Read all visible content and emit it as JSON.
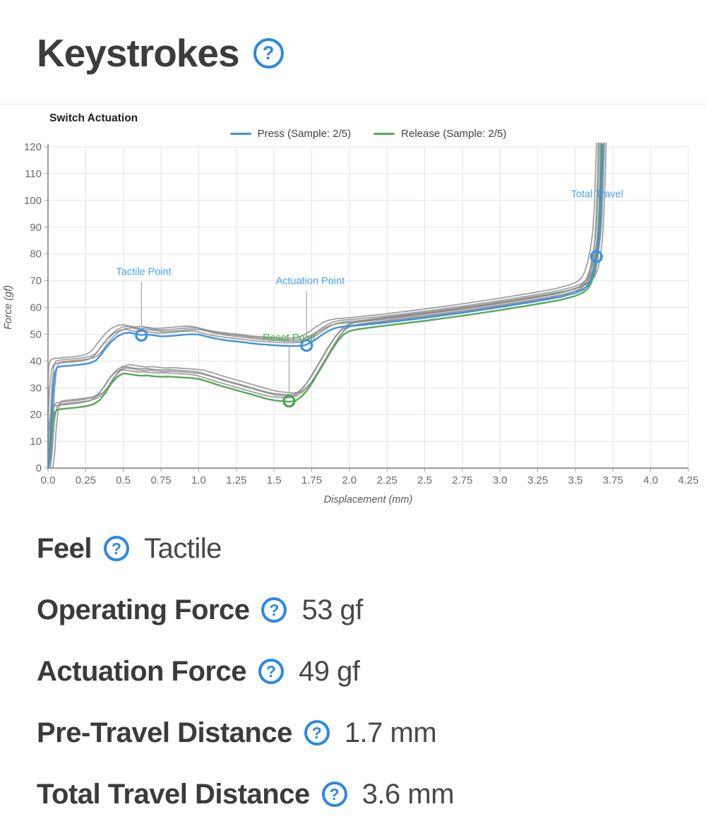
{
  "page": {
    "title": "Keystrokes"
  },
  "icons": {
    "help_glyph": "?"
  },
  "chart_data": {
    "type": "line",
    "title": "Switch Actuation",
    "xlabel": "Displacement (mm)",
    "ylabel": "Force (gf)",
    "xlim": [
      0,
      4.25
    ],
    "ylim": [
      0,
      120
    ],
    "grid": true,
    "legend_position": "top-center",
    "x_ticks": [
      "0.0",
      "0.25",
      "0.5",
      "0.75",
      "1.0",
      "1.25",
      "1.5",
      "1.75",
      "2.0",
      "2.25",
      "2.5",
      "2.75",
      "3.0",
      "3.25",
      "3.5",
      "3.75",
      "4.0",
      "4.25"
    ],
    "y_ticks": [
      0,
      10,
      20,
      30,
      40,
      50,
      60,
      70,
      80,
      90,
      100,
      110,
      120
    ],
    "series": [
      {
        "name": "Press (Sample: 2/5)",
        "color": "#3e92e0",
        "points": [
          [
            0,
            0
          ],
          [
            0.012,
            5
          ],
          [
            0.022,
            16
          ],
          [
            0.032,
            28
          ],
          [
            0.045,
            35.5
          ],
          [
            0.06,
            37.6
          ],
          [
            0.09,
            38.0
          ],
          [
            0.13,
            38.2
          ],
          [
            0.17,
            38.4
          ],
          [
            0.21,
            38.6
          ],
          [
            0.25,
            38.9
          ],
          [
            0.29,
            39.4
          ],
          [
            0.32,
            40.3
          ],
          [
            0.35,
            42.2
          ],
          [
            0.38,
            44.6
          ],
          [
            0.42,
            47.2
          ],
          [
            0.46,
            49.2
          ],
          [
            0.5,
            50.3
          ],
          [
            0.54,
            50.6
          ],
          [
            0.58,
            50.1
          ],
          [
            0.62,
            49.7
          ],
          [
            0.66,
            49.9
          ],
          [
            0.7,
            49.6
          ],
          [
            0.75,
            49.2
          ],
          [
            0.8,
            49.3
          ],
          [
            0.85,
            49.5
          ],
          [
            0.9,
            49.8
          ],
          [
            0.95,
            50.0
          ],
          [
            1.0,
            49.9
          ],
          [
            1.05,
            49.2
          ],
          [
            1.1,
            48.5
          ],
          [
            1.15,
            48.0
          ],
          [
            1.2,
            47.6
          ],
          [
            1.25,
            47.3
          ],
          [
            1.3,
            47.0
          ],
          [
            1.35,
            46.6
          ],
          [
            1.4,
            46.3
          ],
          [
            1.45,
            46.1
          ],
          [
            1.5,
            45.9
          ],
          [
            1.55,
            45.7
          ],
          [
            1.6,
            45.6
          ],
          [
            1.65,
            45.6
          ],
          [
            1.7,
            45.8
          ],
          [
            1.74,
            46.8
          ],
          [
            1.78,
            48.2
          ],
          [
            1.82,
            49.8
          ],
          [
            1.86,
            51.2
          ],
          [
            1.9,
            52.2
          ],
          [
            1.95,
            52.8
          ],
          [
            2.0,
            53.0
          ],
          [
            2.1,
            53.5
          ],
          [
            2.25,
            54.4
          ],
          [
            2.5,
            56.1
          ],
          [
            2.75,
            58.0
          ],
          [
            3.0,
            60.1
          ],
          [
            3.25,
            62.4
          ],
          [
            3.4,
            63.9
          ],
          [
            3.5,
            65.4
          ],
          [
            3.55,
            66.6
          ],
          [
            3.58,
            68.0
          ],
          [
            3.6,
            70.0
          ],
          [
            3.62,
            73.5
          ],
          [
            3.64,
            79.0
          ],
          [
            3.655,
            85
          ],
          [
            3.665,
            93
          ],
          [
            3.672,
            104
          ],
          [
            3.678,
            114
          ],
          [
            3.682,
            121
          ]
        ]
      },
      {
        "name": "Release (Sample: 2/5)",
        "color": "#57a957",
        "points": [
          [
            0,
            0
          ],
          [
            0.012,
            4
          ],
          [
            0.022,
            11
          ],
          [
            0.032,
            17
          ],
          [
            0.045,
            20.8
          ],
          [
            0.06,
            21.8
          ],
          [
            0.1,
            22.1
          ],
          [
            0.15,
            22.4
          ],
          [
            0.2,
            22.7
          ],
          [
            0.25,
            23.1
          ],
          [
            0.3,
            23.8
          ],
          [
            0.34,
            25.2
          ],
          [
            0.38,
            28.0
          ],
          [
            0.42,
            31.6
          ],
          [
            0.46,
            34.1
          ],
          [
            0.5,
            35.4
          ],
          [
            0.54,
            35.1
          ],
          [
            0.58,
            34.7
          ],
          [
            0.62,
            34.5
          ],
          [
            0.66,
            34.6
          ],
          [
            0.7,
            34.3
          ],
          [
            0.75,
            34.1
          ],
          [
            0.8,
            34.2
          ],
          [
            0.85,
            34.0
          ],
          [
            0.9,
            33.8
          ],
          [
            0.95,
            33.6
          ],
          [
            1.0,
            33.3
          ],
          [
            1.05,
            32.5
          ],
          [
            1.1,
            31.6
          ],
          [
            1.15,
            30.7
          ],
          [
            1.2,
            29.9
          ],
          [
            1.25,
            29.1
          ],
          [
            1.3,
            28.3
          ],
          [
            1.35,
            27.5
          ],
          [
            1.4,
            26.7
          ],
          [
            1.45,
            25.9
          ],
          [
            1.5,
            25.3
          ],
          [
            1.55,
            25.0
          ],
          [
            1.6,
            24.8
          ],
          [
            1.64,
            25.0
          ],
          [
            1.68,
            26.6
          ],
          [
            1.72,
            29.0
          ],
          [
            1.76,
            32.4
          ],
          [
            1.8,
            36.2
          ],
          [
            1.84,
            40.0
          ],
          [
            1.88,
            43.8
          ],
          [
            1.92,
            47.2
          ],
          [
            1.96,
            49.8
          ],
          [
            2.0,
            51.2
          ],
          [
            2.05,
            51.8
          ],
          [
            2.1,
            52.2
          ],
          [
            2.25,
            53.3
          ],
          [
            2.5,
            55.0
          ],
          [
            2.75,
            56.9
          ],
          [
            3.0,
            59.0
          ],
          [
            3.25,
            61.3
          ],
          [
            3.4,
            62.8
          ],
          [
            3.5,
            64.3
          ],
          [
            3.55,
            65.5
          ],
          [
            3.58,
            66.9
          ],
          [
            3.6,
            68.6
          ],
          [
            3.62,
            71.5
          ],
          [
            3.635,
            76
          ],
          [
            3.648,
            83
          ],
          [
            3.658,
            92
          ],
          [
            3.665,
            103
          ],
          [
            3.67,
            113
          ],
          [
            3.673,
            121
          ]
        ]
      }
    ],
    "gray_samples": {
      "color": "#8b8b8b",
      "press_offsets": [
        [
          -0.022,
          1.2
        ],
        [
          -0.006,
          2.4
        ],
        [
          0.012,
          1.8
        ],
        [
          -0.04,
          3.0
        ]
      ],
      "release_offsets": [
        [
          -0.02,
          1.4
        ],
        [
          -0.004,
          2.6
        ],
        [
          0.014,
          2.0
        ],
        [
          0.032,
          3.3
        ]
      ]
    },
    "annotations": [
      {
        "id": "tactile",
        "label": "Tactile Point",
        "text_color": "#4ba1f2",
        "marker": {
          "x": 0.62,
          "y": 49.6,
          "color": "#3e92e0"
        },
        "label_pos": {
          "x": 0.635,
          "y": 73.5
        },
        "leader": {
          "x": 0.62,
          "y1": 69.5,
          "y2": 52.6
        }
      },
      {
        "id": "actuation",
        "label": "Actuation Point",
        "text_color": "#4ba1f2",
        "marker": {
          "x": 1.716,
          "y": 45.8,
          "color": "#3e92e0"
        },
        "label_pos": {
          "x": 1.74,
          "y": 70
        },
        "leader": {
          "x": 1.716,
          "y1": 66,
          "y2": 48.6
        }
      },
      {
        "id": "reset",
        "label": "Reset Point",
        "text_color": "#4cae4f",
        "marker": {
          "x": 1.6,
          "y": 25.0,
          "color": "#49a549"
        },
        "label_pos": {
          "x": 1.6,
          "y": 48.8
        },
        "leader": {
          "x": 1.6,
          "y1": 45.5,
          "y2": 27.8
        }
      },
      {
        "id": "total-travel",
        "label": "Total Travel",
        "text_color": "#4ba1f2",
        "marker": {
          "x": 3.64,
          "y": 79.0,
          "color": "#3e92e0"
        },
        "label_pos": {
          "x": 3.645,
          "y": 102.5
        },
        "leader": null
      }
    ]
  },
  "stats": [
    {
      "label": "Feel",
      "value": "Tactile"
    },
    {
      "label": "Operating Force",
      "value": "53 gf"
    },
    {
      "label": "Actuation Force",
      "value": "49 gf"
    },
    {
      "label": "Pre-Travel Distance",
      "value": "1.7 mm"
    },
    {
      "label": "Total Travel Distance",
      "value": "3.6 mm"
    }
  ]
}
